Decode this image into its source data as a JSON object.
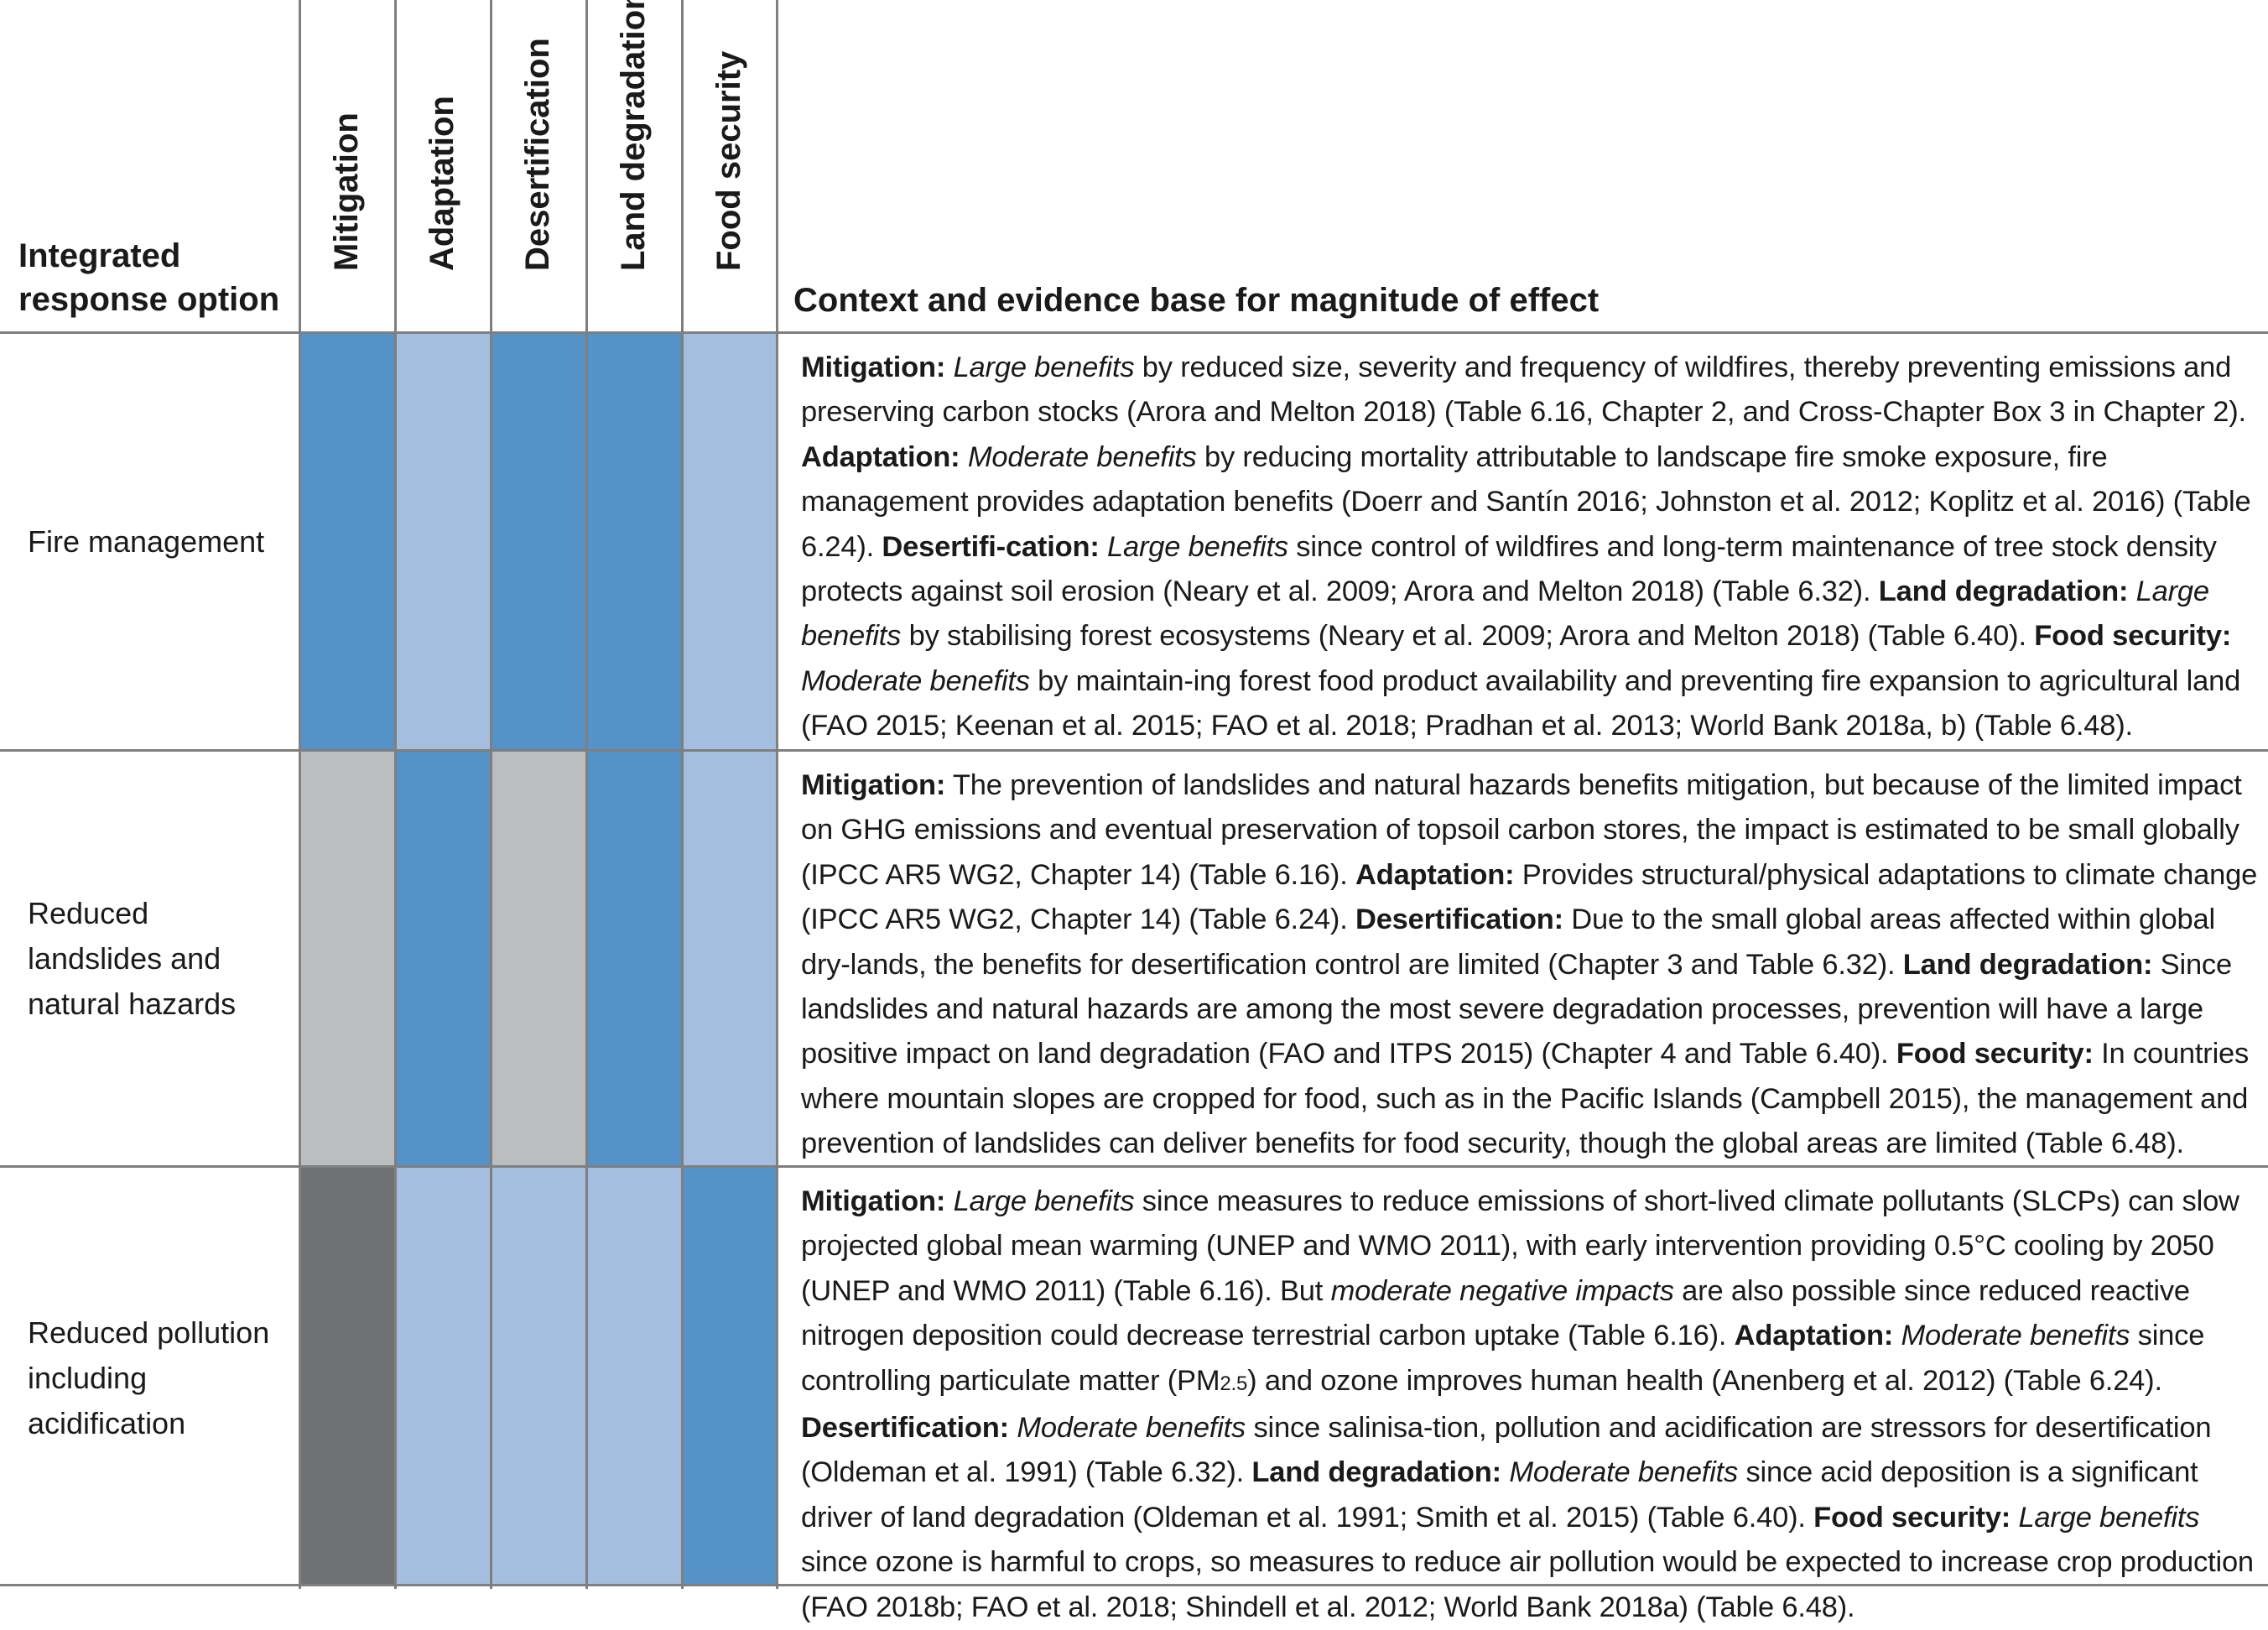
{
  "colors": {
    "large_benefit": "#5592c8",
    "moderate_benefit": "#a4bee0",
    "negligible": "#bcbdbf",
    "mixed_negative": "#707173",
    "grid": "#7f7f7f"
  },
  "header": {
    "option_label_line1": "Integrated",
    "option_label_line2": "response option",
    "columns": [
      "Mitigation",
      "Adaptation",
      "Desertification",
      "Land degradation",
      "Food security"
    ],
    "context_label": "Context and evidence base for magnitude of effect"
  },
  "rows": [
    {
      "option": "Fire management",
      "levels": [
        "large",
        "moderate",
        "large",
        "large",
        "moderate"
      ],
      "context": [
        {
          "t": "Mitigation:",
          "s": "b"
        },
        {
          "t": " "
        },
        {
          "t": "Large benefits",
          "s": "i"
        },
        {
          "t": " by reduced size, severity and frequency of wildfires, thereby preventing emissions and preserving carbon stocks (Arora and Melton 2018) (Table 6.16, Chapter 2, and Cross-Chapter Box 3 in Chapter 2). "
        },
        {
          "t": "Adaptation:",
          "s": "b"
        },
        {
          "t": " "
        },
        {
          "t": "Moderate benefits",
          "s": "i"
        },
        {
          "t": " by reducing mortality attributable to landscape fire smoke exposure, fire management provides adaptation benefits (Doerr and Santín 2016; Johnston et al. 2012; Koplitz et al. 2016) (Table 6.24). "
        },
        {
          "t": "Desertifi-cation:",
          "s": "b"
        },
        {
          "t": " "
        },
        {
          "t": "Large benefits",
          "s": "i"
        },
        {
          "t": " since control of wildfires and long-term maintenance of tree stock density protects against soil erosion (Neary et al. 2009; Arora and Melton 2018) (Table 6.32). "
        },
        {
          "t": "Land degradation:",
          "s": "b"
        },
        {
          "t": " "
        },
        {
          "t": "Large benefits",
          "s": "i"
        },
        {
          "t": " by stabilising forest ecosystems (Neary et al. 2009; Arora and Melton 2018) (Table 6.40). "
        },
        {
          "t": "Food security:",
          "s": "b"
        },
        {
          "t": " "
        },
        {
          "t": "Moderate benefits",
          "s": "i"
        },
        {
          "t": " by maintain-ing forest food product availability and preventing fire expansion to agricultural land (FAO 2015; Keenan et al. 2015; FAO et al. 2018; Pradhan et al. 2013; World Bank 2018a, b) (Table 6.48)."
        }
      ]
    },
    {
      "option": "Reduced landslides and natural hazards",
      "levels": [
        "negligible",
        "large",
        "negligible",
        "large",
        "moderate"
      ],
      "context": [
        {
          "t": "Mitigation:",
          "s": "b"
        },
        {
          "t": " The prevention of landslides and natural hazards benefits mitigation, but because of the limited impact on GHG emissions and eventual preservation of topsoil carbon stores, the impact is estimated to be small globally (IPCC AR5 WG2, Chapter 14) (Table 6.16). "
        },
        {
          "t": "Adaptation:",
          "s": "b"
        },
        {
          "t": " Provides structural/physical adaptations to climate change (IPCC AR5 WG2, Chapter 14) (Table 6.24). "
        },
        {
          "t": "Desertification:",
          "s": "b"
        },
        {
          "t": " Due to the small global areas affected within global dry-lands, the benefits for desertification control are limited (Chapter 3 and Table 6.32). "
        },
        {
          "t": "Land degradation:",
          "s": "b"
        },
        {
          "t": " Since landslides and natural hazards are among the most severe degradation processes, prevention will have a large positive impact on land degradation (FAO and ITPS 2015) (Chapter 4 and Table 6.40). "
        },
        {
          "t": "Food security:",
          "s": "b"
        },
        {
          "t": " In countries where mountain slopes are cropped for food, such as in the Pacific Islands (Campbell 2015), the management and prevention of landslides can deliver benefits for food security, though the global areas are limited (Table 6.48)."
        }
      ]
    },
    {
      "option": "Reduced pollution including acidification",
      "levels": [
        "mixed",
        "moderate",
        "moderate",
        "moderate",
        "large"
      ],
      "context": [
        {
          "t": "Mitigation:",
          "s": "b"
        },
        {
          "t": " "
        },
        {
          "t": "Large benefits",
          "s": "i"
        },
        {
          "t": " since measures to reduce emissions of short-lived climate pollutants (SLCPs) can slow projected global mean warming (UNEP and WMO 2011), with early intervention providing 0.5°C cooling by 2050 (UNEP and WMO 2011) (Table 6.16). But "
        },
        {
          "t": "moderate negative impacts",
          "s": "i"
        },
        {
          "t": " are also possible since reduced reactive nitrogen deposition could decrease terrestrial carbon uptake (Table 6.16). "
        },
        {
          "t": "Adaptation:",
          "s": "b"
        },
        {
          "t": " "
        },
        {
          "t": "Moderate benefits",
          "s": "i"
        },
        {
          "t": " since controlling particulate matter (PM"
        },
        {
          "t": "2.5",
          "s": "sub"
        },
        {
          "t": ") and ozone improves human health (Anenberg et al. 2012) (Table 6.24). "
        },
        {
          "t": "Desertification:",
          "s": "b"
        },
        {
          "t": " "
        },
        {
          "t": "Moderate benefits",
          "s": "i"
        },
        {
          "t": " since salinisa-tion, pollution and acidification are stressors for desertification (Oldeman et al. 1991) (Table 6.32). "
        },
        {
          "t": "Land degradation:",
          "s": "b"
        },
        {
          "t": " "
        },
        {
          "t": "Moderate benefits",
          "s": "i"
        },
        {
          "t": " since acid deposition is a significant driver of land degradation (Oldeman et al. 1991; Smith et al. 2015) (Table 6.40). "
        },
        {
          "t": "Food security:",
          "s": "b"
        },
        {
          "t": " "
        },
        {
          "t": "Large benefits",
          "s": "i"
        },
        {
          "t": " since ozone is harmful to crops, so measures to reduce air pollution would be expected to increase crop production (FAO 2018b; FAO et al. 2018; Shindell et al. 2012; World Bank 2018a) (Table 6.48)."
        }
      ]
    }
  ]
}
